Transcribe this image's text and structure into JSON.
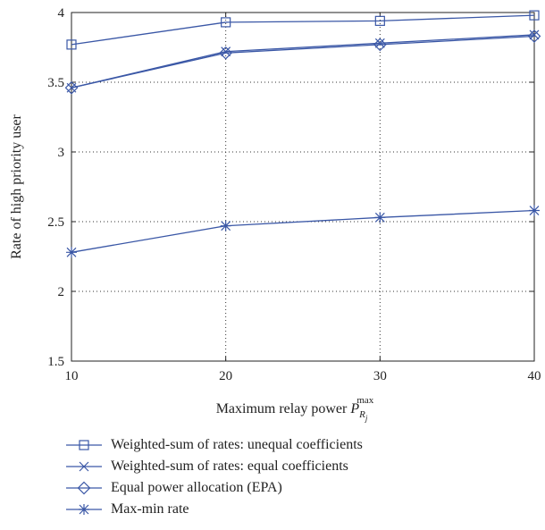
{
  "chart_data": {
    "type": "line",
    "x": [
      10,
      20,
      30,
      40
    ],
    "xlim": [
      10,
      40
    ],
    "ylim": [
      1.5,
      4
    ],
    "xticks": [
      "10",
      "20",
      "30",
      "40"
    ],
    "yticks": [
      "1.5",
      "2",
      "2.5",
      "3",
      "3.5",
      "4"
    ],
    "xlabel_main": "Maximum relay power ",
    "xlabel_sym": "P",
    "xlabel_sub": "R",
    "xlabel_subsub": "j",
    "xlabel_sup": "max",
    "ylabel": "Rate of high priority user",
    "grid": true,
    "line_color": "#3a57a6",
    "series": [
      {
        "name": "Weighted-sum of rates: unequal coefficients",
        "marker": "square",
        "values": [
          3.77,
          3.93,
          3.94,
          3.98
        ]
      },
      {
        "name": "Weighted-sum of rates: equal coefficients",
        "marker": "x",
        "values": [
          3.46,
          3.72,
          3.78,
          3.84
        ]
      },
      {
        "name": "Equal power allocation (EPA)",
        "marker": "diamond",
        "values": [
          3.46,
          3.71,
          3.77,
          3.83
        ]
      },
      {
        "name": "Max-min rate",
        "marker": "star",
        "values": [
          2.28,
          2.47,
          2.53,
          2.58
        ]
      }
    ]
  }
}
